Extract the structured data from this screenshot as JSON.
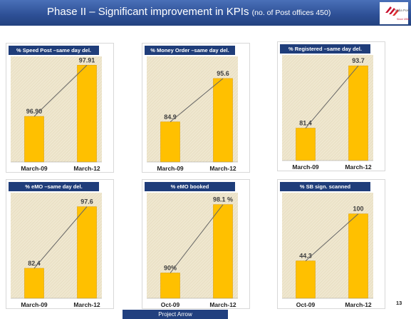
{
  "header": {
    "title": "Phase II – Significant improvement in KPIs",
    "subtitle": "(no. of Post offices 450)"
  },
  "logo": {
    "text": "India Post",
    "subtext": "Since 1854"
  },
  "colors": {
    "bar": "#ffc000",
    "bar_edge": "#e0a000",
    "header": "#2d4f95",
    "panel_title": "#1f3d7a",
    "connector": "#666666",
    "plot_area": "#efe7cf"
  },
  "footer": {
    "label": "Project Arrow",
    "page": "13"
  },
  "chart_data": [
    {
      "type": "bar",
      "title": "% Speed Post –same day del.",
      "categories": [
        "March-09",
        "March-12"
      ],
      "values": [
        96.9,
        97.91
      ],
      "value_labels": [
        "96.90",
        "97.91"
      ],
      "ylim": [
        96.0,
        98.0
      ]
    },
    {
      "type": "bar",
      "title": "% Money Order –same day del.",
      "categories": [
        "March-09",
        "March-12"
      ],
      "values": [
        84.9,
        95.6
      ],
      "value_labels": [
        "84.9",
        "95.6"
      ],
      "ylim": [
        75,
        100
      ]
    },
    {
      "type": "bar",
      "title": "% Registered –same day del.",
      "categories": [
        "March-09",
        "March-12"
      ],
      "values": [
        81.4,
        93.7
      ],
      "value_labels": [
        "81.4",
        "93.7"
      ],
      "ylim": [
        75,
        95
      ]
    },
    {
      "type": "bar",
      "title": "% eMO –same day del.",
      "categories": [
        "March-09",
        "March-12"
      ],
      "values": [
        82.4,
        97.6
      ],
      "value_labels": [
        "82.4",
        "97.6"
      ],
      "ylim": [
        75,
        100
      ]
    },
    {
      "type": "bar",
      "title": "% eMO booked",
      "categories": [
        "Oct-09",
        "March-12"
      ],
      "values": [
        90,
        98.1
      ],
      "value_labels": [
        "90%",
        "98.1 %"
      ],
      "ylim": [
        87,
        99
      ]
    },
    {
      "type": "bar",
      "title": "% SB sign. scanned",
      "categories": [
        "Oct-09",
        "March-12"
      ],
      "values": [
        44.3,
        100
      ],
      "value_labels": [
        "44.3",
        "100"
      ],
      "ylim": [
        0,
        120
      ]
    }
  ]
}
